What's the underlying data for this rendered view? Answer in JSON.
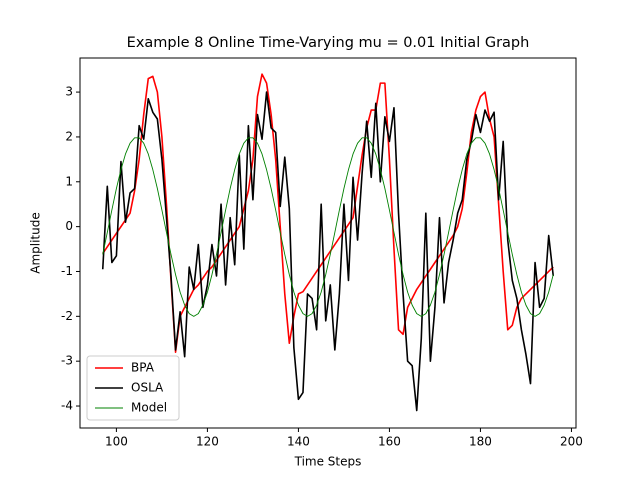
{
  "chart_data": {
    "type": "line",
    "title": "Example 8 Online Time-Varying mu = 0.01 Initial Graph",
    "xlabel": "Time Steps",
    "ylabel": "Amplitude",
    "x": [
      97,
      98,
      99,
      100,
      101,
      102,
      103,
      104,
      105,
      106,
      107,
      108,
      109,
      110,
      111,
      112,
      113,
      114,
      115,
      116,
      117,
      118,
      119,
      120,
      121,
      122,
      123,
      124,
      125,
      126,
      127,
      128,
      129,
      130,
      131,
      132,
      133,
      134,
      135,
      136,
      137,
      138,
      139,
      140,
      141,
      142,
      143,
      144,
      145,
      146,
      147,
      148,
      149,
      150,
      151,
      152,
      153,
      154,
      155,
      156,
      157,
      158,
      159,
      160,
      161,
      162,
      163,
      164,
      165,
      166,
      167,
      168,
      169,
      170,
      171,
      172,
      173,
      174,
      175,
      176,
      177,
      178,
      179,
      180,
      181,
      182,
      183,
      184,
      185,
      186,
      187,
      188,
      189,
      190,
      191,
      192,
      193,
      194,
      195,
      196
    ],
    "series": [
      {
        "name": "BPA",
        "color": "#ff0000",
        "values": [
          -0.6,
          -0.45,
          -0.3,
          -0.15,
          0,
          0.15,
          0.3,
          0.8,
          1.5,
          2.5,
          3.3,
          3.35,
          3.0,
          2.0,
          0.5,
          -1.2,
          -2.8,
          -2.0,
          -1.8,
          -1.6,
          -1.4,
          -1.3,
          -1.15,
          -1.0,
          -0.9,
          -0.75,
          -0.6,
          -0.45,
          -0.3,
          -0.15,
          0,
          0.4,
          0.8,
          1.5,
          2.9,
          3.4,
          3.2,
          2.5,
          1.5,
          0,
          -1.5,
          -2.6,
          -2.0,
          -1.5,
          -1.45,
          -1.3,
          -1.15,
          -1.0,
          -0.85,
          -0.7,
          -0.55,
          -0.4,
          -0.25,
          -0.1,
          0.05,
          0.2,
          0.9,
          1.6,
          2.2,
          2.6,
          2.6,
          3.2,
          3.2,
          1.5,
          -0.5,
          -2.3,
          -2.4,
          -1.8,
          -1.6,
          -1.4,
          -1.25,
          -1.1,
          -0.95,
          -0.8,
          -0.65,
          -0.5,
          -0.35,
          -0.2,
          0,
          0.4,
          1.2,
          2.1,
          2.6,
          2.9,
          3.0,
          2.4,
          2.0,
          0.5,
          -1.0,
          -2.3,
          -2.2,
          -1.8,
          -1.6,
          -1.5,
          -1.4,
          -1.3,
          -1.2,
          -1.1,
          -1.0,
          -0.9
        ]
      },
      {
        "name": "OSLA",
        "color": "#000000",
        "values": [
          -0.95,
          0.9,
          -0.8,
          -0.65,
          1.45,
          0.1,
          0.75,
          0.85,
          2.25,
          1.95,
          2.85,
          2.55,
          2.4,
          1.5,
          0.2,
          -1.1,
          -2.75,
          -1.9,
          -2.9,
          -0.9,
          -1.4,
          -0.4,
          -1.8,
          -1.3,
          -0.4,
          -1.1,
          0.5,
          -1.3,
          0.2,
          -0.85,
          1.6,
          -0.5,
          2.25,
          0.6,
          2.5,
          1.95,
          3.0,
          2.2,
          2.1,
          0.45,
          1.55,
          0.4,
          -2.7,
          -3.85,
          -3.7,
          -1.5,
          -1.6,
          -2.3,
          0.5,
          -2.1,
          -1.3,
          -2.75,
          -1.5,
          0.5,
          -1.2,
          1.1,
          -0.3,
          1.2,
          2.35,
          1.1,
          2.75,
          1.0,
          2.45,
          1.9,
          2.65,
          0.3,
          -1.5,
          -3.0,
          -3.1,
          -4.1,
          -2.5,
          0.3,
          -3.0,
          -1.8,
          0.2,
          -1.7,
          -0.8,
          -0.3,
          0.3,
          0.6,
          1.5,
          1.9,
          2.5,
          2.1,
          2.6,
          2.35,
          2.55,
          0.6,
          1.9,
          -0.3,
          -1.2,
          -1.6,
          -2.3,
          -2.85,
          -3.5,
          -0.8,
          -1.8,
          -1.6,
          -0.2,
          -1.1
        ]
      },
      {
        "name": "Model",
        "color": "#008000",
        "values": [
          -0.62,
          -0.13,
          0.37,
          0.85,
          1.27,
          1.62,
          1.86,
          1.98,
          1.98,
          1.86,
          1.62,
          1.27,
          0.85,
          0.37,
          -0.13,
          -0.62,
          -1.07,
          -1.46,
          -1.75,
          -1.94,
          -2,
          -1.94,
          -1.75,
          -1.46,
          -1.07,
          -0.62,
          -0.13,
          0.37,
          0.85,
          1.27,
          1.62,
          1.86,
          1.98,
          1.98,
          1.86,
          1.62,
          1.27,
          0.85,
          0.37,
          -0.13,
          -0.62,
          -1.07,
          -1.46,
          -1.75,
          -1.94,
          -2,
          -1.94,
          -1.75,
          -1.46,
          -1.07,
          -0.62,
          -0.13,
          0.37,
          0.85,
          1.27,
          1.62,
          1.86,
          1.98,
          1.98,
          1.86,
          1.62,
          1.27,
          0.85,
          0.37,
          -0.13,
          -0.62,
          -1.07,
          -1.46,
          -1.75,
          -1.94,
          -2,
          -1.94,
          -1.75,
          -1.46,
          -1.07,
          -0.62,
          -0.13,
          0.37,
          0.85,
          1.27,
          1.62,
          1.86,
          1.98,
          1.98,
          1.86,
          1.62,
          1.27,
          0.85,
          0.37,
          -0.13,
          -0.62,
          -1.07,
          -1.46,
          -1.75,
          -1.94,
          -2,
          -1.94,
          -1.75,
          -1.46,
          -1.07
        ]
      }
    ],
    "xlim": [
      92,
      201
    ],
    "ylim": [
      -4.49,
      3.76
    ],
    "xticks": [
      100,
      120,
      140,
      160,
      180,
      200
    ],
    "yticks": [
      -4,
      -3,
      -2,
      -1,
      0,
      1,
      2,
      3
    ],
    "legend": "lower left"
  }
}
